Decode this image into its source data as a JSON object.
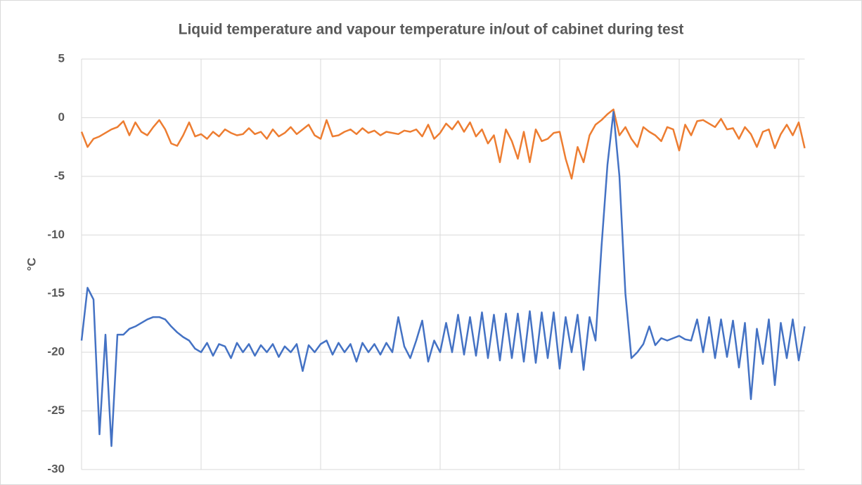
{
  "chart_data": {
    "type": "line",
    "title": "Liquid temperature and vapour temperature in/out of cabinet during test",
    "y_label": "°C",
    "categories": [
      null,
      null,
      null,
      null,
      null,
      null,
      null,
      null,
      null,
      null,
      null,
      null,
      null,
      null,
      null,
      null,
      null,
      null,
      null,
      null,
      null,
      null,
      null,
      null,
      null,
      null,
      null,
      null,
      null,
      null,
      null,
      null,
      null,
      null,
      null,
      null,
      null,
      null,
      null,
      null,
      null,
      null,
      null,
      null,
      null,
      null,
      null,
      null,
      null,
      null,
      null,
      null,
      null,
      null,
      null,
      null,
      null,
      null,
      null,
      null,
      null,
      null,
      null,
      null,
      null,
      null,
      null,
      null,
      null,
      null,
      null,
      null,
      null,
      null,
      null,
      null,
      null,
      null,
      null,
      null,
      null,
      null,
      null,
      null,
      null,
      null,
      null,
      null,
      null,
      null,
      null,
      null,
      null,
      null,
      null,
      null,
      null,
      null,
      null,
      null,
      null,
      null,
      null,
      null,
      null,
      null,
      null,
      null,
      null,
      null,
      null,
      null,
      null,
      null,
      null,
      null,
      null,
      null,
      null,
      null,
      null,
      null
    ],
    "series": [
      {
        "color": "#ed7d31",
        "values": [
          -1.2,
          -2.5,
          -1.8,
          -1.6,
          -1.3,
          -1.0,
          -0.8,
          -0.3,
          -1.5,
          -0.4,
          -1.2,
          -1.5,
          -0.8,
          -0.2,
          -1.0,
          -2.2,
          -2.4,
          -1.5,
          -0.4,
          -1.6,
          -1.4,
          -1.8,
          -1.2,
          -1.6,
          -1.0,
          -1.3,
          -1.5,
          -1.4,
          -0.9,
          -1.4,
          -1.2,
          -1.8,
          -1.0,
          -1.6,
          -1.3,
          -0.8,
          -1.4,
          -1.0,
          -0.6,
          -1.5,
          -1.8,
          -0.2,
          -1.6,
          -1.5,
          -1.2,
          -1.0,
          -1.4,
          -0.9,
          -1.3,
          -1.1,
          -1.5,
          -1.2,
          -1.3,
          -1.4,
          -1.1,
          -1.2,
          -1.0,
          -1.6,
          -0.6,
          -1.8,
          -1.3,
          -0.5,
          -1.0,
          -0.3,
          -1.2,
          -0.4,
          -1.6,
          -1.0,
          -2.2,
          -1.5,
          -3.8,
          -1.0,
          -2.0,
          -3.5,
          -1.2,
          -3.8,
          -1.0,
          -2.0,
          -1.8,
          -1.3,
          -1.2,
          -3.5,
          -5.2,
          -2.5,
          -3.8,
          -1.5,
          -0.6,
          -0.2,
          0.3,
          0.7,
          -1.5,
          -0.8,
          -1.8,
          -2.5,
          -0.8,
          -1.2,
          -1.5,
          -2.0,
          -0.8,
          -1.0,
          -2.8,
          -0.6,
          -1.5,
          -0.3,
          -0.2,
          -0.5,
          -0.8,
          -0.1,
          -1.0,
          -0.9,
          -1.8,
          -0.8,
          -1.4,
          -2.5,
          -1.2,
          -1.0,
          -2.6,
          -1.4,
          -0.6,
          -1.5,
          -0.4,
          -2.6
        ]
      },
      {
        "color": "#4472c4",
        "values": [
          -19,
          -14.5,
          -15.5,
          -27,
          -18.5,
          -28,
          -18.5,
          -18.5,
          -18,
          -17.8,
          -17.5,
          -17.2,
          -17,
          -17,
          -17.2,
          -17.8,
          -18.3,
          -18.7,
          -19,
          -19.7,
          -20,
          -19.2,
          -20.3,
          -19.3,
          -19.5,
          -20.5,
          -19.2,
          -20,
          -19.3,
          -20.3,
          -19.4,
          -20,
          -19.3,
          -20.4,
          -19.5,
          -20,
          -19.3,
          -21.6,
          -19.4,
          -20,
          -19.3,
          -19,
          -20.2,
          -19.2,
          -20,
          -19.3,
          -20.8,
          -19.2,
          -20,
          -19.3,
          -20.2,
          -19.2,
          -20,
          -17,
          -19.5,
          -20.5,
          -19,
          -17.3,
          -20.8,
          -19,
          -20,
          -17.5,
          -20,
          -16.8,
          -20.2,
          -17,
          -20.3,
          -16.6,
          -20.5,
          -16.8,
          -20.7,
          -16.7,
          -20.5,
          -16.7,
          -20.8,
          -16.5,
          -20.9,
          -16.6,
          -20.5,
          -16.6,
          -21.4,
          -17,
          -20,
          -16.8,
          -21.5,
          -17,
          -19,
          -11,
          -4,
          0.5,
          -5,
          -15,
          -20.5,
          -20,
          -19.3,
          -17.8,
          -19.4,
          -18.8,
          -19,
          -18.8,
          -18.6,
          -18.9,
          -19,
          -17.2,
          -20,
          -17,
          -20.5,
          -17.2,
          -20.4,
          -17.3,
          -21.3,
          -17.5,
          -24,
          -18,
          -21,
          -17.2,
          -22.8,
          -17.5,
          -20.5,
          -17.2,
          -20.7,
          -17.8
        ]
      }
    ],
    "ylim": [
      -30,
      5
    ],
    "yticks": [
      5,
      0,
      -5,
      -10,
      -15,
      -20,
      -25,
      -30
    ],
    "grid": true
  }
}
